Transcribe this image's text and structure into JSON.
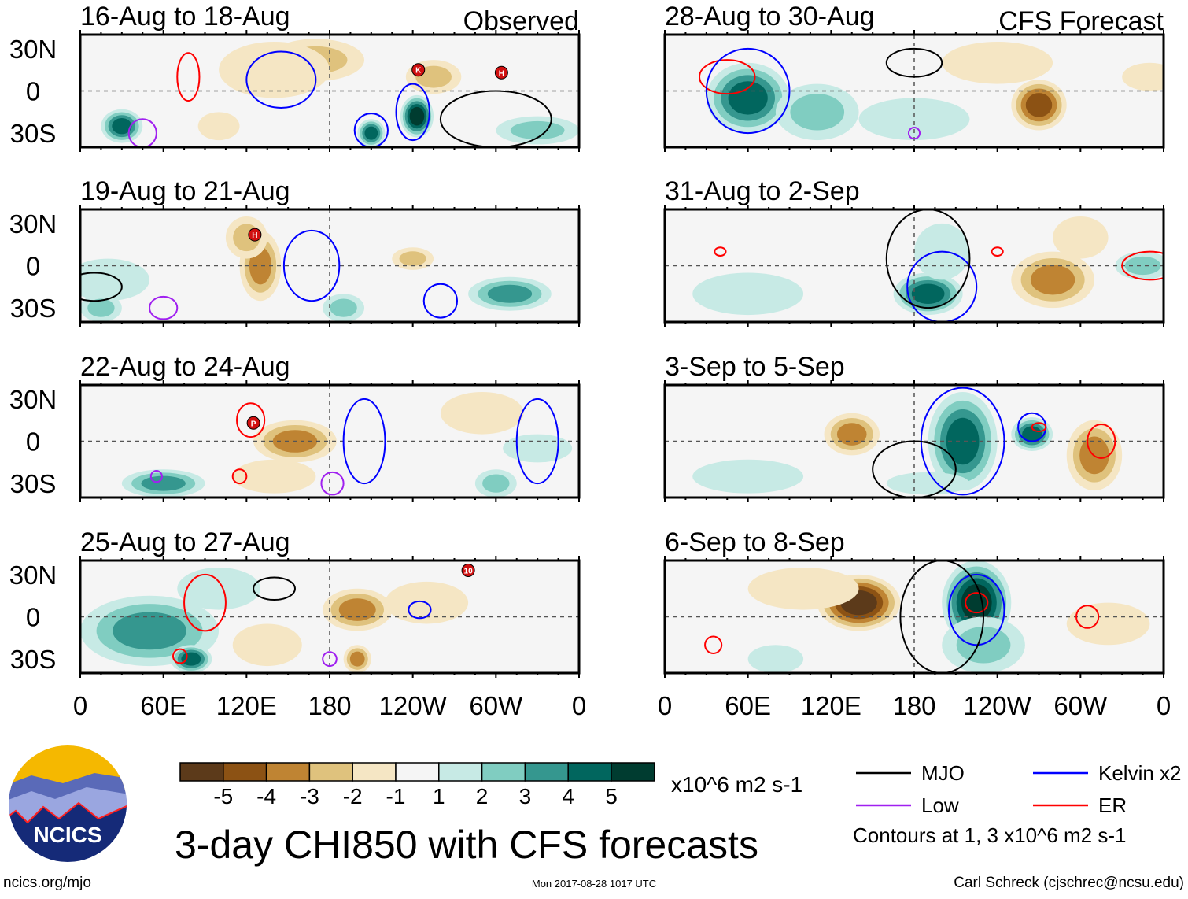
{
  "figure_title": "3-day CHI850 with CFS forecasts",
  "footer": {
    "left": "ncics.org/mjo",
    "center": "Mon 2017-08-28 1017 UTC",
    "right": "Carl Schreck (cjschrec@ncsu.edu)"
  },
  "logo_text": "NCICS",
  "column_labels": [
    "Observed",
    "CFS Forecast"
  ],
  "y_ticks": [
    "30N",
    "0",
    "30S"
  ],
  "x_ticks": [
    "0",
    "60E",
    "120E",
    "180",
    "120W",
    "60W",
    "0"
  ],
  "colorbar": {
    "units": "x10^6 m2 s-1",
    "labels": [
      "-5",
      "-4",
      "-3",
      "-2",
      "-1",
      "1",
      "2",
      "3",
      "4",
      "5"
    ],
    "colors": [
      "#5c3a1a",
      "#8c5214",
      "#bf8433",
      "#dfc27d",
      "#f5e6c4",
      "#f5f5f5",
      "#c7eae5",
      "#80cdc1",
      "#35978f",
      "#01665e",
      "#003c30"
    ]
  },
  "legend": {
    "items": [
      {
        "label": "MJO",
        "color": "#000000"
      },
      {
        "label": "Kelvin x2",
        "color": "#0000ff"
      },
      {
        "label": "Low",
        "color": "#a020f0"
      },
      {
        "label": "ER",
        "color": "#ff0000"
      }
    ],
    "note": "Contours at 1, 3 x10^6 m2 s-1"
  },
  "chart_data": {
    "type": "heatmap",
    "variable": "3-day CHI850 anomaly (x10^6 m2 s-1)",
    "lon_range": [
      0,
      360
    ],
    "lat_range": [
      -40,
      40
    ],
    "panels": [
      {
        "title": "16-Aug to 18-Aug",
        "shading": [
          [
            170,
            22,
            -2,
            35,
            15
          ],
          [
            140,
            15,
            -1,
            40,
            20
          ],
          [
            255,
            10,
            -2,
            20,
            12
          ],
          [
            30,
            -25,
            4,
            15,
            12
          ],
          [
            210,
            -30,
            4,
            10,
            10
          ],
          [
            243,
            -18,
            5,
            12,
            15
          ],
          [
            330,
            -28,
            2,
            30,
            10
          ],
          [
            100,
            -25,
            -1,
            15,
            10
          ]
        ],
        "contours": [
          [
            "er",
            78,
            10,
            8,
            17
          ],
          [
            "kelvin",
            240,
            -15,
            12,
            20
          ],
          [
            "kelvin",
            210,
            -28,
            12,
            12
          ],
          [
            "kelvin",
            145,
            8,
            25,
            20
          ],
          [
            "low",
            45,
            -30,
            10,
            10
          ],
          [
            "mjo",
            300,
            -20,
            40,
            20
          ]
        ],
        "storms": [
          [
            "K",
            244,
            15
          ],
          [
            "H",
            304,
            13
          ]
        ]
      },
      {
        "title": "19-Aug to 21-Aug",
        "shading": [
          [
            130,
            0,
            -3,
            15,
            25
          ],
          [
            120,
            20,
            -2,
            15,
            15
          ],
          [
            240,
            5,
            -2,
            15,
            8
          ],
          [
            20,
            -10,
            1,
            30,
            15
          ],
          [
            310,
            -20,
            3,
            30,
            12
          ],
          [
            190,
            -30,
            2,
            15,
            10
          ],
          [
            15,
            -30,
            2,
            15,
            10
          ]
        ],
        "contours": [
          [
            "kelvin",
            167,
            0,
            20,
            25
          ],
          [
            "kelvin",
            260,
            -25,
            12,
            12
          ],
          [
            "low",
            60,
            -30,
            10,
            8
          ],
          [
            "mjo",
            10,
            -15,
            20,
            10
          ]
        ],
        "storms": [
          [
            "H",
            126,
            22
          ]
        ]
      },
      {
        "title": "22-Aug to 24-Aug",
        "shading": [
          [
            155,
            0,
            -3,
            30,
            15
          ],
          [
            290,
            20,
            -1,
            30,
            15
          ],
          [
            60,
            -30,
            3,
            30,
            10
          ],
          [
            330,
            -5,
            1,
            25,
            10
          ],
          [
            300,
            -30,
            2,
            15,
            10
          ],
          [
            140,
            -25,
            -1,
            30,
            12
          ]
        ],
        "contours": [
          [
            "er",
            123,
            15,
            10,
            12
          ],
          [
            "er",
            115,
            -25,
            5,
            5
          ],
          [
            "low",
            182,
            -30,
            8,
            8
          ],
          [
            "low",
            55,
            -25,
            4,
            4
          ],
          [
            "kelvin",
            205,
            0,
            15,
            30
          ],
          [
            "kelvin",
            330,
            0,
            15,
            30
          ]
        ],
        "storms": [
          [
            "P",
            125,
            13
          ]
        ]
      },
      {
        "title": "25-Aug to 27-Aug",
        "shading": [
          [
            50,
            -10,
            3,
            50,
            25
          ],
          [
            80,
            -30,
            4,
            15,
            10
          ],
          [
            200,
            5,
            -3,
            25,
            15
          ],
          [
            200,
            -30,
            -3,
            10,
            10
          ],
          [
            135,
            -20,
            -1,
            25,
            15
          ],
          [
            250,
            10,
            -1,
            30,
            15
          ],
          [
            100,
            20,
            1,
            30,
            15
          ]
        ],
        "contours": [
          [
            "er",
            90,
            10,
            15,
            20
          ],
          [
            "er",
            72,
            -28,
            5,
            5
          ],
          [
            "low",
            180,
            -30,
            5,
            5
          ],
          [
            "mjo",
            140,
            20,
            15,
            8
          ],
          [
            "kelvin",
            245,
            5,
            8,
            6
          ]
        ],
        "storms": [
          [
            "10",
            280,
            33
          ]
        ]
      },
      {
        "title": "28-Aug to 30-Aug",
        "shading": [
          [
            60,
            -5,
            4,
            30,
            25
          ],
          [
            110,
            -15,
            2,
            30,
            20
          ],
          [
            270,
            -10,
            -4,
            20,
            18
          ],
          [
            240,
            20,
            -1,
            40,
            15
          ],
          [
            350,
            10,
            -1,
            20,
            10
          ],
          [
            180,
            -20,
            1,
            40,
            15
          ]
        ],
        "contours": [
          [
            "er",
            45,
            10,
            20,
            12
          ],
          [
            "kelvin",
            60,
            0,
            30,
            30
          ],
          [
            "mjo",
            180,
            20,
            20,
            10
          ],
          [
            "low",
            180,
            -30,
            4,
            4
          ]
        ],
        "storms": []
      },
      {
        "title": "31-Aug to 2-Sep",
        "shading": [
          [
            280,
            -10,
            -3,
            30,
            20
          ],
          [
            300,
            20,
            -1,
            20,
            15
          ],
          [
            190,
            -20,
            4,
            25,
            15
          ],
          [
            200,
            10,
            1,
            20,
            20
          ],
          [
            60,
            -20,
            1,
            40,
            15
          ],
          [
            345,
            0,
            2,
            20,
            10
          ]
        ],
        "contours": [
          [
            "er",
            350,
            0,
            20,
            10
          ],
          [
            "er",
            240,
            10,
            4,
            3
          ],
          [
            "er",
            40,
            10,
            4,
            3
          ],
          [
            "kelvin",
            200,
            -15,
            25,
            25
          ],
          [
            "mjo",
            190,
            5,
            30,
            35
          ]
        ],
        "storms": []
      },
      {
        "title": "3-Sep to 5-Sep",
        "shading": [
          [
            215,
            0,
            4,
            25,
            35
          ],
          [
            265,
            5,
            4,
            15,
            12
          ],
          [
            310,
            -10,
            -3,
            20,
            25
          ],
          [
            135,
            5,
            -3,
            20,
            15
          ],
          [
            60,
            -25,
            1,
            40,
            12
          ],
          [
            190,
            -30,
            1,
            30,
            8
          ]
        ],
        "contours": [
          [
            "kelvin",
            215,
            0,
            30,
            38
          ],
          [
            "kelvin",
            265,
            10,
            10,
            10
          ],
          [
            "er",
            315,
            0,
            10,
            12
          ],
          [
            "er",
            270,
            10,
            5,
            3
          ],
          [
            "mjo",
            180,
            -20,
            30,
            20
          ]
        ],
        "storms": []
      },
      {
        "title": "6-Sep to 8-Sep",
        "shading": [
          [
            140,
            10,
            -5,
            30,
            20
          ],
          [
            100,
            20,
            -1,
            40,
            15
          ],
          [
            225,
            10,
            5,
            25,
            30
          ],
          [
            230,
            -20,
            2,
            30,
            20
          ],
          [
            80,
            -30,
            1,
            20,
            10
          ],
          [
            320,
            -5,
            -1,
            30,
            15
          ]
        ],
        "contours": [
          [
            "er",
            225,
            10,
            8,
            7
          ],
          [
            "er",
            305,
            0,
            8,
            8
          ],
          [
            "er",
            35,
            -20,
            6,
            6
          ],
          [
            "kelvin",
            225,
            5,
            20,
            25
          ],
          [
            "mjo",
            200,
            0,
            30,
            40
          ]
        ],
        "storms": []
      }
    ]
  }
}
